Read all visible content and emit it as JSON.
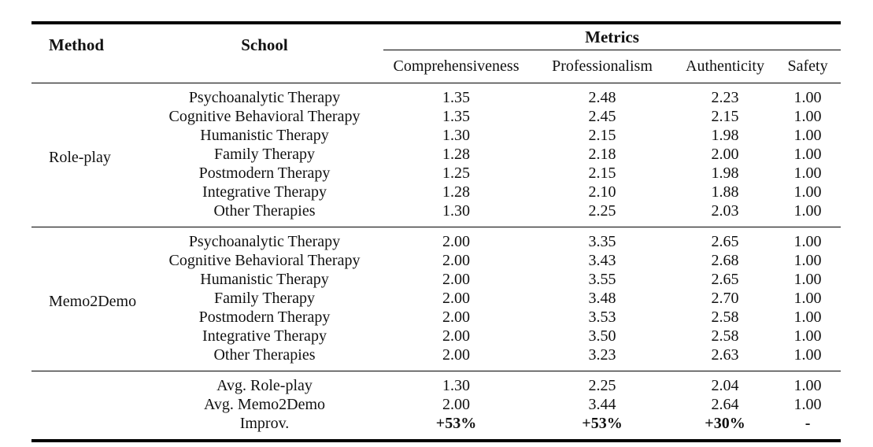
{
  "table": {
    "headers": {
      "method": "Method",
      "school": "School",
      "metrics_group": "Metrics",
      "metrics": [
        "Comprehensiveness",
        "Professionalism",
        "Authenticity",
        "Safety"
      ]
    },
    "groups": [
      {
        "method": "Role-play",
        "rows": [
          {
            "school": "Psychoanalytic Therapy",
            "values": [
              "1.35",
              "2.48",
              "2.23",
              "1.00"
            ]
          },
          {
            "school": "Cognitive Behavioral Therapy",
            "values": [
              "1.35",
              "2.45",
              "2.15",
              "1.00"
            ]
          },
          {
            "school": "Humanistic Therapy",
            "values": [
              "1.30",
              "2.15",
              "1.98",
              "1.00"
            ]
          },
          {
            "school": "Family Therapy",
            "values": [
              "1.28",
              "2.18",
              "2.00",
              "1.00"
            ]
          },
          {
            "school": "Postmodern Therapy",
            "values": [
              "1.25",
              "2.15",
              "1.98",
              "1.00"
            ]
          },
          {
            "school": "Integrative Therapy",
            "values": [
              "1.28",
              "2.10",
              "1.88",
              "1.00"
            ]
          },
          {
            "school": "Other Therapies",
            "values": [
              "1.30",
              "2.25",
              "2.03",
              "1.00"
            ]
          }
        ]
      },
      {
        "method": "Memo2Demo",
        "rows": [
          {
            "school": "Psychoanalytic Therapy",
            "values": [
              "2.00",
              "3.35",
              "2.65",
              "1.00"
            ]
          },
          {
            "school": "Cognitive Behavioral Therapy",
            "values": [
              "2.00",
              "3.43",
              "2.68",
              "1.00"
            ]
          },
          {
            "school": "Humanistic Therapy",
            "values": [
              "2.00",
              "3.55",
              "2.65",
              "1.00"
            ]
          },
          {
            "school": "Family Therapy",
            "values": [
              "2.00",
              "3.48",
              "2.70",
              "1.00"
            ]
          },
          {
            "school": "Postmodern Therapy",
            "values": [
              "2.00",
              "3.53",
              "2.58",
              "1.00"
            ]
          },
          {
            "school": "Integrative Therapy",
            "values": [
              "2.00",
              "3.50",
              "2.58",
              "1.00"
            ]
          },
          {
            "school": "Other Therapies",
            "values": [
              "2.00",
              "3.23",
              "2.63",
              "1.00"
            ]
          }
        ]
      }
    ],
    "summary_rows": [
      {
        "label": "Avg. Role-play",
        "values": [
          "1.30",
          "2.25",
          "2.04",
          "1.00"
        ],
        "bold_values": false
      },
      {
        "label": "Avg. Memo2Demo",
        "values": [
          "2.00",
          "3.44",
          "2.64",
          "1.00"
        ],
        "bold_values": false
      },
      {
        "label": "Improv.",
        "values": [
          "+53%",
          "+53%",
          "+30%",
          "-"
        ],
        "bold_values": true
      }
    ],
    "colors": {
      "rule": "#000000",
      "text": "#111111",
      "background": "#ffffff"
    }
  }
}
